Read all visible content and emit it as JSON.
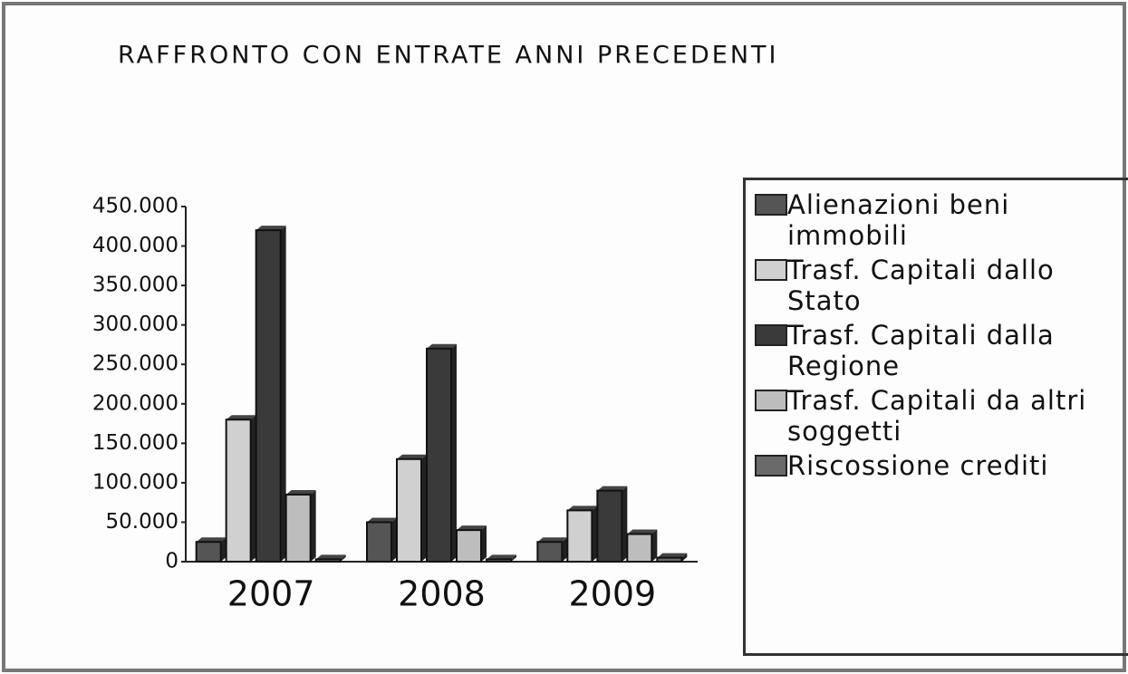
{
  "chart_data": {
    "type": "bar",
    "title": "RAFFRONTO CON ENTRATE ANNI PRECEDENTI",
    "categories": [
      "2007",
      "2008",
      "2009"
    ],
    "series": [
      {
        "name": "Alienazioni beni immobili",
        "color": "#555555",
        "values": [
          25000,
          50000,
          25000
        ]
      },
      {
        "name": "Trasf. Capitali dallo Stato",
        "color": "#d0d0d0",
        "values": [
          180000,
          130000,
          65000
        ]
      },
      {
        "name": "Trasf. Capitali dalla Regione",
        "color": "#3a3a3a",
        "values": [
          420000,
          270000,
          90000
        ]
      },
      {
        "name": "Trasf. Capitali da altri soggetti",
        "color": "#bdbdbd",
        "values": [
          85000,
          40000,
          35000
        ]
      },
      {
        "name": "Riscossione crediti",
        "color": "#6a6a6a",
        "values": [
          3000,
          3000,
          5000
        ]
      }
    ],
    "ylim": [
      0,
      450000
    ],
    "yticks": [
      0,
      {
        "value": 50000,
        "label": "50.000"
      },
      {
        "value": 100000,
        "label": "100.000"
      },
      {
        "value": 150000,
        "label": "150.000"
      },
      {
        "value": 200000,
        "label": "200.000"
      },
      {
        "value": 250000,
        "label": "250.000"
      },
      {
        "value": 300000,
        "label": "300.000"
      },
      {
        "value": 350000,
        "label": "350.000"
      },
      {
        "value": 400000,
        "label": "400.000"
      },
      {
        "value": 450000,
        "label": "450.000"
      }
    ],
    "legend": "right"
  }
}
